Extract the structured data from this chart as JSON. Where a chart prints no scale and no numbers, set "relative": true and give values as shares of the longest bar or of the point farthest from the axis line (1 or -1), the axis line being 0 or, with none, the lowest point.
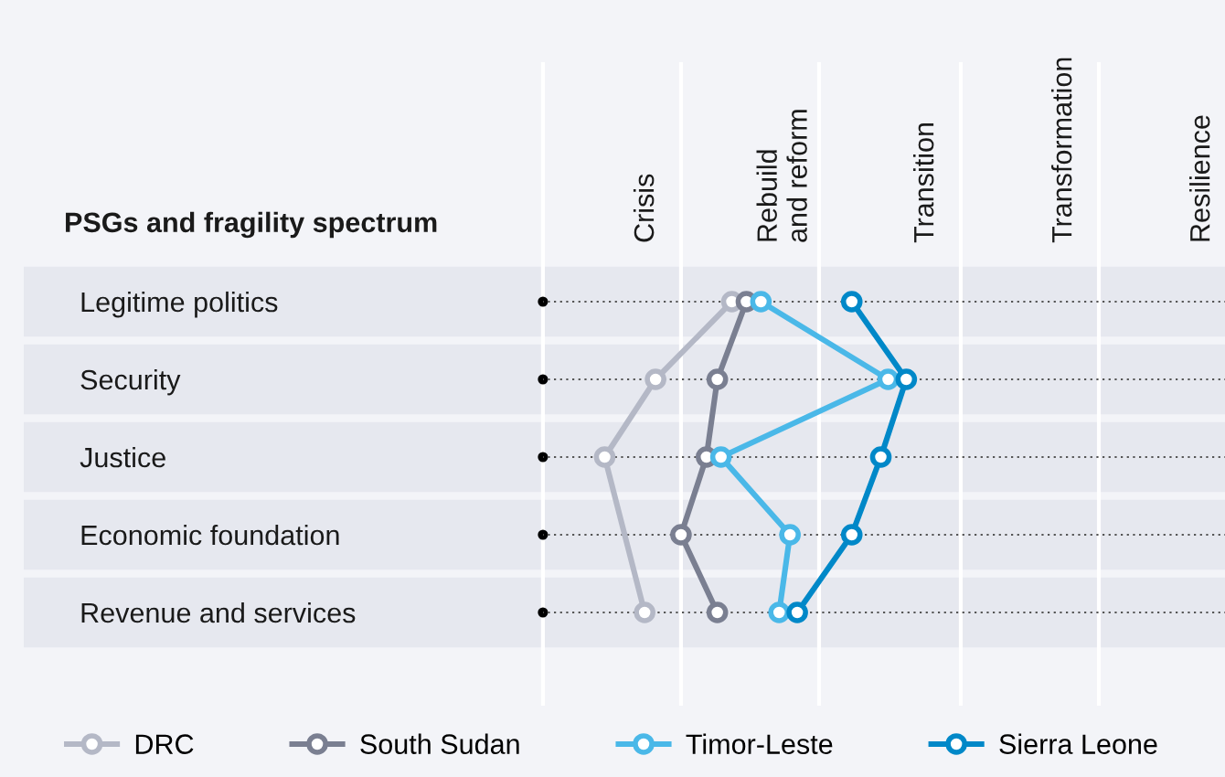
{
  "chart_data": {
    "type": "line",
    "orientation": "horizontal",
    "relative": true,
    "title": "PSGs and fragility spectrum",
    "categories": [
      "Legitime politics",
      "Security",
      "Justice",
      "Economic foundation",
      "Revenue and services"
    ],
    "ref_lines": [
      {
        "axis": "x",
        "value": 0,
        "label": null,
        "color": "#ffffff"
      },
      {
        "axis": "x",
        "value": 0.38,
        "label": "Crisis",
        "color": "#ffffff"
      },
      {
        "axis": "x",
        "value": 0.76,
        "label": "Rebuild\nand reform",
        "color": "#ffffff"
      },
      {
        "axis": "x",
        "value": 1.15,
        "label": "Transition",
        "color": "#ffffff"
      },
      {
        "axis": "x",
        "value": 1.53,
        "label": "Transformation",
        "color": "#ffffff"
      }
    ],
    "annotations": [
      "Resilience"
    ],
    "grid": "y",
    "marker": "circle",
    "line_style": "solid",
    "legend": "bottom",
    "series": [
      {
        "name": "DRC",
        "color": "#b4b8c6",
        "values": [
          0.52,
          0.31,
          0.17,
          null,
          0.28
        ]
      },
      {
        "name": "South Sudan",
        "color": "#7a7f91",
        "values": [
          0.56,
          0.48,
          0.45,
          0.38,
          0.48
        ]
      },
      {
        "name": "Timor-Leste",
        "color": "#4ab8e8",
        "values": [
          0.6,
          0.95,
          0.49,
          0.68,
          0.65
        ]
      },
      {
        "name": "Sierra Leone",
        "color": "#0088c8",
        "values": [
          0.85,
          1,
          0.93,
          0.85,
          0.7
        ]
      }
    ]
  }
}
